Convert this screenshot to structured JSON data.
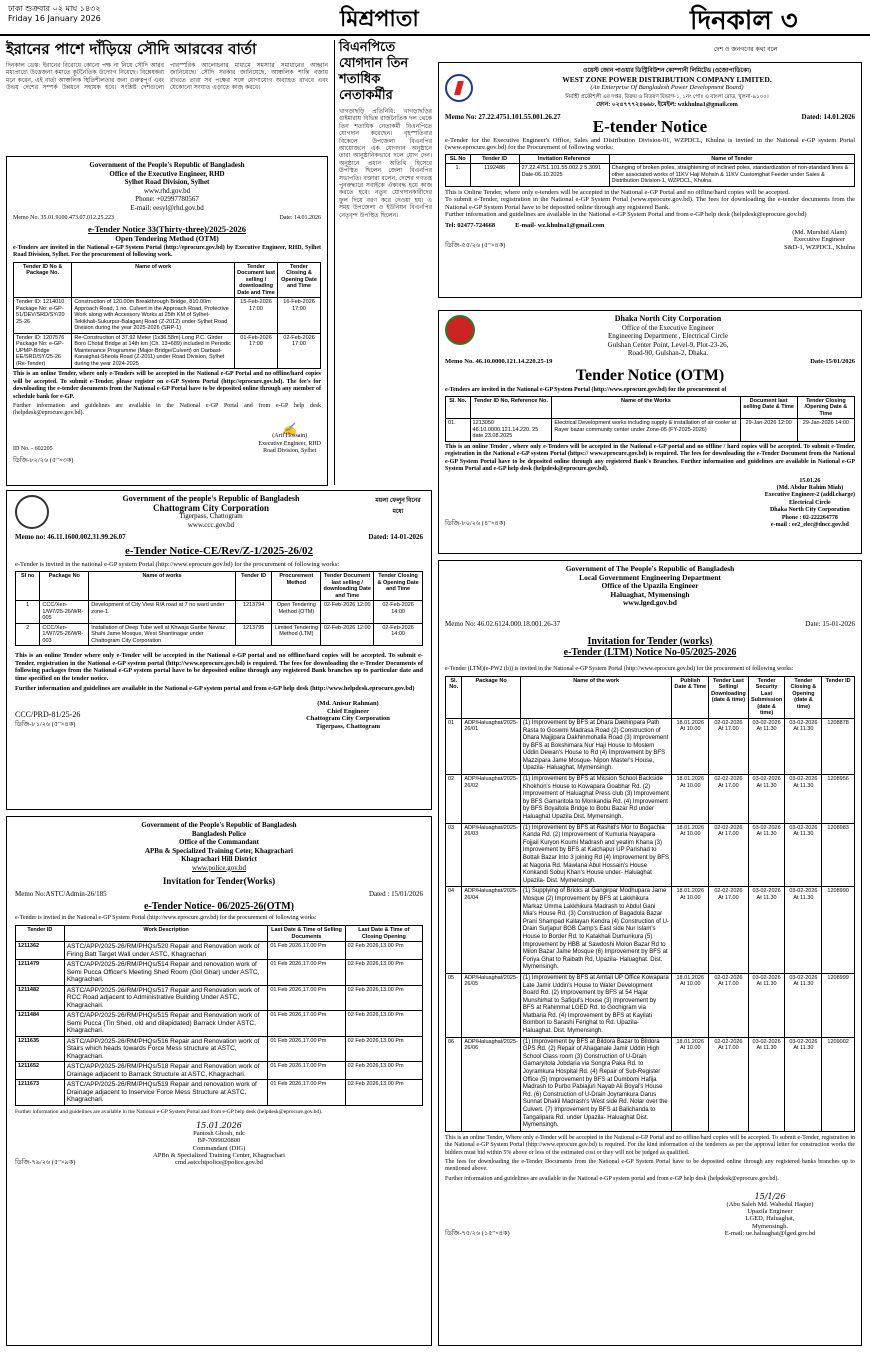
{
  "masthead": {
    "date_bn": "ঢাকা শুক্রবার ০২ মাঘ ১৪৩২",
    "date_en": "Friday 16 January 2026",
    "section": "মিশ্রপাতা",
    "paper": "দিনকাল ৩",
    "tagline": "দেশ ও জনগণের কথা বলে"
  },
  "news1": {
    "headline": "ইরানের পাশে দাঁড়িয়ে সৌদি আরবের বার্তা",
    "body": "দিনকাল ডেস্ক: ইরানের বিরোধে কোনো পক্ষ না নিয়ে সৌদি আরব মধ্যপ্রাচ্যে উত্তেজনা কমাতে কূটনৈতিক উদ্যোগ নিয়েছে। বিশ্লেষকরা মনে করেন, এই বার্তা আঞ্চলিক স্থিতিশীলতার জন্য গুরুত্বপূর্ণ এবং উভয় দেশের সম্পর্ক উন্নয়নে সহায়ক হবে। সংশ্লিষ্ট দেশগুলো পারস্পরিক আলোচনার মাধ্যমে সমস্যার সমাধানের আহ্বান জানিয়েছে। সৌদি সরকার জানিয়েছে, আঞ্চলিক শান্তি বজায় রাখতে তারা সব পক্ষের সঙ্গে যোগাযোগ অব্যাহত রাখবে এবং যেকোনো সংঘাত এড়াতে কাজ করবে।"
  },
  "news2": {
    "headline": "বিএনপিতে যোগদান তিন শতাধিক নেতাকর্মীর",
    "body": "খাগড়াছড়ি প্রতিনিধি: খাগড়াছড়ির গুইমারায় বিভিন্ন রাজনৈতিক দল থেকে তিন শতাধিক নেতাকর্মী বিএনপিতে যোগদান করেছেন। বৃহস্পতিবার বিকেলে উপজেলা বিএনপির আয়োজনে এক যোগদান অনুষ্ঠানে তারা আনুষ্ঠানিকভাবে দলে যোগ দেন। অনুষ্ঠানে প্রধান অতিথি হিসেবে উপস্থিত ছিলেন জেলা বিএনপির সভাপতি। বক্তারা বলেন, দেশের গণতন্ত্র পুনরুদ্ধারে সবাইকে ঐক্যবদ্ধ হয়ে কাজ করতে হবে। নতুন যোগদানকারীদের ফুল দিয়ে বরণ করে নেওয়া হয়। এ সময় উপজেলা ও ইউনিয়ন বিএনপির নেতৃবৃন্দ উপস্থিত ছিলেন।"
  },
  "rhd": {
    "gov": "Government of the People's Republic of Bangladesh",
    "office": "Office of the Executive Engineer, RHD",
    "division": "Sylhet Road Division, Sylhet",
    "web": "www.rhd.gov.bd",
    "phone": "Phone: +02997780567",
    "email": "E-mail: eesyl@rhd.gov.bd",
    "memo": "Memo No. 35.01.9100.473.07.012.25.223",
    "date": "Date: 14.01.2026",
    "title": "e-Tender Notice 33(Thirty-three)/2025-2026",
    "subtitle": "Open Tendering Method (OTM)",
    "intro": "e-Tenders are invited in the National e-GP System Portal (http://eprocure.gov.bd) by Executive Engineer, RHD, Sylhet Road Division, Sylhet. For the procurement of following work.",
    "cols": [
      "Tender ID No & Package No.",
      "Name of work",
      "Tender Document last selling / downloading Date and Time",
      "Tender Closing & Opening Date and Time"
    ],
    "rows": [
      [
        "Tender ID: 1214010 Package No: e-GP-51/DEV/SRD/SY/20 25-26",
        "Construction of 120.00m Breakthrough Bridge, 810.00m Approach Road, 1 no. Culvert in the Approach Road, Protective Work along with Accessory Works at 25th KM of Sylhet-Tekikhali-Sukurpur-Balaganj Road (Z-2012) under Sylhet Road Division during the year 2025-2026 (SRP-1)",
        "15-Feb-2026 17:00",
        "16-Feb-2026 17:00"
      ],
      [
        "Tender ID: 1207576 Package No: e-GP-UPMP-Bridge EE/SRD/SY/25-26 (Re-Tender)",
        "Re-Construction of 37.92 Meter (1x36.58m) Long P.C. Girder Boro Chotal Bridge at 14th km (Ch. 13+689) included in Periodic Maintenance Programme (Major-Bridge/Culvert) on Darbast-Kanaighat-Sheola Road (Z-2011) under Road Division, Sylhet during the year 2024-2025",
        "01-Feb-2026 17:00",
        "02-Feb-2026 17:00"
      ]
    ],
    "note": "This is an online Tender, where only e-Tenders will be accepted in the National e-GP Portal and no offline/hard copies will be accepted. To submit e-Tender, please register on e-GP System Portal (http://eprocure.gov.bd). The fee's for downloading the e-tender documents from the National e-GP Portal have to be deposited online through any member of schedule bank for e-GP.",
    "note2": "Further information and guidelines are available in the National e-GP Portal and from e-GP help desk (helpdesk@eprocure.gov.bd).",
    "id": "ID No. - 602205",
    "sign_name": "(Arif Hossain)",
    "sign_role": "Executive Engineer, RHD",
    "sign_office": "Road Division, Sylhet",
    "ref": "ডিজি-৮২/২৬ (৫\"×৩ক)"
  },
  "wzpdc": {
    "bn_name": "ওয়েস্ট জোন পাওয়ার ডিস্ট্রিবিউশন কোম্পানী লিমিটেড (ওজোপাডিকো)",
    "name": "WEST ZONE POWER DISTRIBUTION COMPANY LIMITED.",
    "sub": "(An Enterprise Of Bangladesh Power Development Board)",
    "bn_office": "নির্বাহী প্রকৌশলী এর দপ্তর, বিক্রয় ও বিতরণ বিভাগ-১, ১নং পোঃ এ বাংলা রোড, খুলনা-৯১০০।",
    "contact": "ফোন: ০২৪৭৭৭২৪৬৬৮, ইমেইল: wzkhulna1@gmail.com",
    "memo": "Memo No: 27.22.4751.101.55.001.26.27",
    "date": "Dated: 14.01.2026",
    "title": "E-tender Notice",
    "intro": "e-Tender for the Executive Engineer's Office, Sales and Distribution Division-01, WZPDCL, Khulna is invited in the National e-GP system Portal (www.eprocure.gov.bd) for the Procurement of following works:",
    "cols": [
      "SL No",
      "Tender ID",
      "Invitation Reference",
      "Name of Tender"
    ],
    "rows": [
      [
        "1.",
        "1192486",
        "27.22.4751.101.55.002.2 5.3091 Date-06.10.2025",
        "Changing of broken poles, straightening of inclined poles, standardization of non-standard lines & other associated works of 11KV Haji Mohsin & 11KV Customghat Feeder under Sales & Distribution Division-1, WZPDCL, Khulna."
      ]
    ],
    "note1": "This is Online Tender, where only e-tenders will be accepted in the National e-GP Portal and no offline/hard copies will be accepted.",
    "note2": "To submit e-Tender, registration in the National e-GP System Portal (www.eprocure.gov.bd). The fees for downloading the e-tender documents from the National e-GP System Portal have to be deposited online through any registered Bank.",
    "note3": "Further information and guidelines are available in the National e-GP System Portal and from e-GP help desk (helpdesk@eprocure.gov.bd)",
    "tel": "Tel: 02477-724668",
    "email": "E-mail- wz.khulna1@gmail.com",
    "sign_name": "(Md. Murshid Alam)",
    "sign_role": "Executive Engineer",
    "sign_office": "S&D-1, WZPDCL, Khulna",
    "ref": "ডিজি-৫৫/২৬ (৫\"×৪ক)"
  },
  "dncc": {
    "name": "Dhaka North City Corporation",
    "office": "Office of the Executive Engineer",
    "dept": "Engineering Department , Electrical Circle",
    "addr": "Gulshan Center Point, Level-9, Plot-23-26,",
    "addr2": "Road-90, Gulshan-2, Dhaka.",
    "memo": "Memo No. 46.10.0000.121.14.220.25-19",
    "date": "Date-15/01/2026",
    "title": "Tender Notice (OTM)",
    "intro": "e-Tenders are invited in the National e-GP System Portal (http://www.eprocure.gov.bd) for the procurement of",
    "cols": [
      "Sl. No.",
      "Tender ID No, Reference No.",
      "Name of the Works",
      "Document last selling Date & Time",
      "Tender Closing /Opening Date & Time"
    ],
    "rows": [
      [
        "01.",
        "1213050 46.10.0000.121.14.220. 25 date 23.08.2025",
        "Electrical Development works including supply & installation of air cooler at Rayer bazar community center under Zone-05 (FY-2025-2026)",
        "29-Jan-2026 12:00",
        "29-Jan-2026 14:00"
      ]
    ],
    "note": "This is an online Tender , where only e-Tenders will be accepted in the National e-GP portal and no offline / hard copies will be accepted. To submit e-Tender, registration in the National e-GP system Portal (https:// www.eprocure.gov.bd) is required. The fees for downloading the e-Tender Document from the National e-GP System Portal have to be deposited online through any registered Bank's Branches. Further information and guidelines are available in National e-GP System Portal and e-GP help desk (helpdesk@eprocure.gov.bd).",
    "sign_date": "15.01.26",
    "sign_name": "(Md. Abdur Rahim Miah)",
    "sign_role": "Executive Engineer-2 (addl.charge)",
    "sign_circle": "Electrical Circle",
    "sign_org": "Dhaka North City Corporation",
    "phone": "Phone : 02-222264778",
    "email": "e-mail : ee2_elec@dncc.gov.bd",
    "ref": "ডিজি-৮০/২৬ (৪\"×৪ক)"
  },
  "ccc": {
    "gov": "Government of the people's Republic of Bangladesh",
    "name": "Chattogram City Corporation",
    "addr": "Tigerpass, Chattogram",
    "web": "www.ccc.gov.bd",
    "slogan": "ময়লা ফেলুন বিনের মধ্যে",
    "memo": "Memo no: 46.11.1600.002.31.99.26.07",
    "date": "Dated: 14-01-2026",
    "title": "e-Tender Notice-CE/Rev/Z-1/2025-26/02",
    "intro": "e-Tender is invited in the national e-GP system Portal (http://www.eprocure.gov.bd) for the procurement of following works:",
    "cols": [
      "Sl no",
      "Package No",
      "Name of works",
      "Tender ID",
      "Procurement Method",
      "Tender Document last selling / downloading Date and Time",
      "Tender Closing & Opening Date and Time"
    ],
    "rows": [
      [
        "1",
        "CCC/Xen-1/W7/25-26/WR-005",
        "Development of City View R/A road at 7 no ward under zone-1.",
        "1213794",
        "Open Tendering Method (OTM)",
        "02-Feb-2026 12:00",
        "02-Feb-2026 14:00"
      ],
      [
        "2",
        "CCC/Xen-1/W7/25-26/WR-003",
        "Installation of Deep Tube well at Khwaja Garibe Newaz Shahi Jame Mosque, West Shantinagar under Chattogram City Corporation",
        "1213795",
        "Limited Tendering Method (LTM)",
        "02-Feb-2026 12:00",
        "02-Feb-2026 14:00"
      ]
    ],
    "note": "This is an online Tender where only e-Tender will be accepted in the National e-GP portal and no offline/hard copies will be accepted. To submit e-Tender, registration in the National e-GP system portal (http://www.eprocure.gov.bd) is required. The fees for downloading the e-Tender Documents of following packages from the National e-GP system portal have to be deposited online through any registered Bank branches up to particular date and time specified on the tender notice.",
    "note2": "Further information and guidelines are available in the National e-GP system portal and from e-GP help desk (http://www.helpdesk.eprocure.gov.bd)",
    "sign_name": "(Md. Anisur Rahman)",
    "sign_role": "Chief Engineer",
    "sign_org": "Chattogram City Corporation",
    "sign_addr": "Tigerpass, Chattogram",
    "prd": "CCC/PRD-81/25-26",
    "ref": "ডিজি-৮১/২৬ (৫\"×৪ক)"
  },
  "apbn": {
    "gov": "Government of the People's Republic of Bangladesh",
    "org": "Bangladesh Police",
    "office": "Office of the Commandant",
    "center": "APBn & Specialized Training Ceter, Khagrachari",
    "dist": "Khagrachari Hill District",
    "web": "www.police.gov.bd",
    "title": "Invitation for Tender(Works)",
    "memo": "Memo No:ASTC/Admin-26/185",
    "date": "Dated : 15/01/2026",
    "title2": "e-Tender Notice- 06/2025-26(OTM)",
    "intro": "e-Tender is invited in the National e-GP System Portal (http://www.eprocure.gov.bd) for the procurement of following works:",
    "cols": [
      "Tender ID",
      "Work Description",
      "Last Date & Time of Selling Documents",
      "Last Date & Time of Closing Opening"
    ],
    "rows": [
      [
        "1211362",
        "ASTC/APP/2025-26/RM/PHQs/520 Repair and Renovation work of Firing Batt Target Wall under ASTC, Khagrachari",
        "01 Feb 2026,17.00 Pm",
        "02 Feb 2026,13.00 Pm"
      ],
      [
        "1211479",
        "ASTC/APP/2025-26/RM/PHQs/514 Repair and renovation work of Semi Pucca Officer's Meeting Shed Room (Gol Ghar) under ASTC, Khagrachari.",
        "01 Feb 2026,17.00 Pm",
        "02 Feb 2026,13.00 Pm"
      ],
      [
        "1211482",
        "ASTC/APP/2025-26/RM/PHQs/517 Repair and Renovation work of RCC Road adjacent to Administrative Building Under ASTC, Khagrachari.",
        "01 Feb 2026,17.00 Pm",
        "02 Feb 2026,13.00 Pm"
      ],
      [
        "1211484",
        "ASTC/APP/2025-26/RM/PHQs/515 Repair and Renovation work of Semi Pucca (Tin Shed, old and dilapidated) Barrack Under ASTC, Khagrachari.",
        "01 Feb 2026,17.00 Pm",
        "02 Feb 2026,13.00 Pm"
      ],
      [
        "1211635",
        "ASTC/APP/2025-26/RM/PHQs/516 Repair and Renovation work of Stairs which heads towards Force Mess structure at ASTC, Khagrachari.",
        "01 Feb 2026,17.00 Pm",
        "02 Feb 2026,13.00 Pm"
      ],
      [
        "1211652",
        "ASTC/APP/2025-26/RM/PHQs/518 Repair and Renovation work of Drainage adjacent to Barrack Structure at ASTC, Khagrachari.",
        "01 Feb 2026,17.00 Pm",
        "02 Feb 2026,13.00 Pm"
      ],
      [
        "1211673",
        "ASTC/APP/2025-26/RM/PHQs/519 Repair and renovation work of Drainage adjacent to Inservice Force Mess Structure at ASTC, Khagrachari.",
        "01 Feb 2026,17.00 Pm",
        "02 Feb 2026,13.00 Pm"
      ]
    ],
    "note": "Further information and guidelines are available in the National e-GP System Portal and from e-GP help desk (helpdesk@eprocure.gov.bd).",
    "sign_date": "15.01.2026",
    "sign_name": "Pantosh Ghosh, ndc",
    "sign_bp": "BP-7099020800",
    "sign_role": "Commandant (DIG)",
    "sign_center": "APBn & Specialized Training Center, Khagrachari",
    "sign_email": "cmd.astcchtpolice@police.gov.bd",
    "ref": "ডিজি-৭৯/২৬ (৫\"×৯ক)"
  },
  "lged": {
    "gov": "Government of The People's Republic of Bangladesh",
    "dept": "Local Government Engineering Department",
    "office": "Office of the Upazila Engineer",
    "upazila": "Haluaghat, Mymensingh",
    "web": "www.lged.gov.bd",
    "memo": "Memo No: 46.02.6124.000.18.001.26-37",
    "date": "Date: 15-01-2026",
    "title": "Invitation for Tender (works)",
    "title2": "e-Tender (LTM) Notice No-05/2025-2026",
    "intro": "e-Tender (LTM)(e-PW2 (b)) is invited in the National e-GP System Portal (http://www.eprocure.gov.bd) for the procurement of following works:",
    "cols": [
      "Sl. No.",
      "Package No",
      "Name of the work",
      "Publish Date & Time",
      "Tender Last Selling/ Downloading (date & time)",
      "Tender Security Last Submission (date & time)",
      "Tender Closing & Opening (date & time)",
      "Tender ID"
    ],
    "rows": [
      [
        "01",
        "ADP/Haluaghat/2025-26/01",
        "(1) Improvement by BFS at Dhara Dakhinpara Path Rasta to Goswmi Madrasa Road (2) Construction of Dhara Majjipara Dakhinmohalla Road (3) Improvement by BFS at Bokshimara Nur Haji House to Moslem Uddin Dewan's House to Rd (4) Improvement by BFS Mazzipara Jame Mosque- Nipon Master's House, Upazila- Haluaghat, Mymensingh.",
        "18.01.2026 At 10.00",
        "02-02-2026 At 17.00",
        "03-02-2026 At 11.30",
        "03-02-2026 At 11.30",
        "1208878"
      ],
      [
        "02",
        "ADP/Haluaghat/2025-26/02",
        "(1) Improvement by BFS at Mission School Backside Khokhon's House to Kowapara Goabhar Rd. (2) Improvement of Haluaghat Press club (3) Improvement by BFS Gamaritola to Monkandia Rd. (4) Improvement by BFS Boyaltola Bridge to Bobu Bazar Rd under Haluaghat Upazila Dist. Mymensingh.",
        "18.01.2026 At 10.00",
        "02-02-2026 At 17.00",
        "03-02-2026 At 11.30",
        "03-02-2026 At 11.30",
        "1208956"
      ],
      [
        "03",
        "ADP/Haluaghat/2025-26/03",
        "(1) Improvement by BFS at Rashid's Mor to Bogachia Kanda Rd. (2) Improvement of Kumuria Nayapara Fojjail Kuryon Koumi Madrash and yeatim Khana (3) Improvement by BFS at Kaichapur UP Parishad to Bottali Bazar Into 3 joining Rd (4) Improvement by BFS at Nagoria Rd. Mawlana Abul Hossain's House Konkandi Sobuj Khan's House under- Haluaghat Upazila- Dist. Mymensingh.",
        "18.01.2026 At 10.00",
        "02-02-2026 At 17.00",
        "03-02-2026 At 11.30",
        "03-02-2026 At 11.30",
        "1208983"
      ],
      [
        "04",
        "ADP/Haluaghat/2025-26/04",
        "(1) Supplying of Bricks at Gangirpar Modhupara Jame Mosque (2) Improvement by BFS at Lakkhikura Markaz Umma Lakkhikura Madrash to Abdul Gani Mia's House Rd. (3) Construction of Bagadola Bazar Prani Shampad Kallayan Kendra (4) Construction of U-Drain Surjapur BGB Camp's East side Nur Islam's House to Border Rd. to Katakhali Dumurikura (5) Improvement by HBB at Sawdoshi Molon Bazar Rd to Milon Bazar Jame Mosque (6) Improvement by BFS at Foriya Ghat to Raibath Rd, Upazila- Haluaghat. Dist. Mymensingh.",
        "18.01.2026 At 10.00",
        "02-02-2026 At 17.00",
        "03-02-2026 At 11.30",
        "03-02-2026 At 11.30",
        "1208990"
      ],
      [
        "05",
        "ADP/Haluaghat/2025-26/05",
        "(1) Improvement by BFS at Amtail UP Office Kowapara Late Jamir Uddin's House to Water Development Board Rd. (2) Improvement by BFS at 54 Hajar Munshirhat to Safiqul's House (3) Improvement by BFS at Rahimmal LGED Rd. to Gochigram via Matbaria Rd. (4) Improvement by BFS at Kayilati Bombori to Sarashi Ferighat to Rd. Upazila- Haluaghat. Dist. Mymensingh.",
        "18.01.2026 At 10.00",
        "02-02-2026 At 17.00",
        "03-02-2026 At 11.30",
        "03-02-2026 At 11.30",
        "1208999"
      ],
      [
        "06",
        "ADP/Haluaghat/2025-26/06",
        "(1) Improvement by BFS at Bildora Bazar to Bildora GPS Rd. (2) Repair of Ahaganale Jamir Uddin High School Class room (3) Construction of U-Drain Gamaryitola Jobdaria via Songra Paka Rd. to Joyramkura Hospital Rd. (4) Repair of Sub-Register Office (5) Improvement by BFS at Dumbomi Hafija Madrash to Purbo Pabiajuri Nayab Ali Boyal's House Rd. (6) Construction of U-Drain Joyramkura Darus Sunnat Dhakil Madrash's West side Rd. Nolar over the Culvert. (7) Improvement by BFS at Balichanda to Tangalipara Rd. under Upazila- Haluaghat Dist. Mymensingh.",
        "18.01.2026 At 10.00",
        "02-02-2026 At 17.00",
        "03-02-2026 At 11.30",
        "03-02-2026 At 11.30",
        "1209002"
      ]
    ],
    "note": "This is an online Tender, Where only e-Tender will be accepted in the National e-GP Portal and no offline/hard copies will be accepted. To submit e-Tender, registration in the National e-GP System Portal (http://www.eprocure.gov.bd) is required. For the kind information of the tenderers as per the approval letter for construction works the bidders must bid within 5% above or less of the estimated cost or they will not be judged as qualified.",
    "note2": "The fees for downloading the e-Tender Documents from the National e-GP System Portal have to be deposited online through any registered banks branches up to mentioned above.",
    "note3": "Further information and guidelines are available in the National e-GP system portal and from e-GP help desk (helpdesk@eprocure.gov.bd).",
    "sign_date": "15/1/26",
    "sign_name": "(Abu Saleh Md. Wahedul Haque)",
    "sign_role": "Upazila Engineer",
    "sign_office": "LGED, Haluaghat,",
    "sign_place": "Mymensingh.",
    "email": "E-mail: ue.haluaghat@lged.gov.bd",
    "ref": "ডিজি-৭৫/২৬ (১৫\"×৪ক)"
  }
}
